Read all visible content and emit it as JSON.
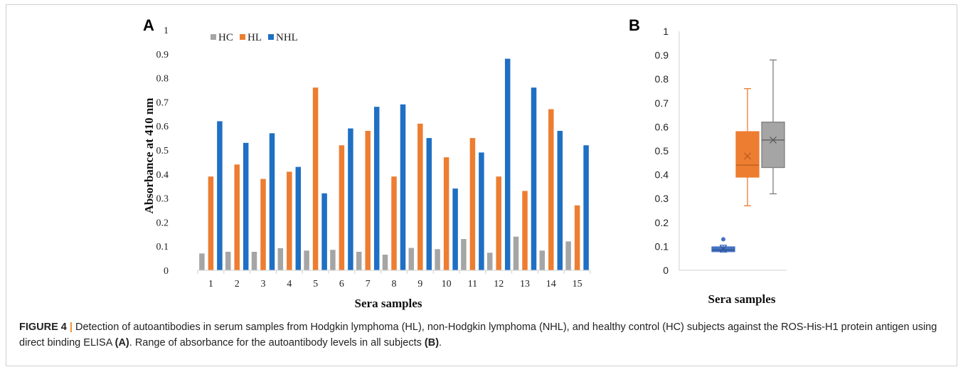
{
  "figure": {
    "caption": {
      "label": "FIGURE 4",
      "separator": "|",
      "text_1": " Detection of autoantibodies in serum samples from Hodgkin lymphoma (HL), non-Hodgkin lymphoma (NHL), and healthy control (HC) subjects against the ROS-His-H1 protein antigen using direct binding ELISA ",
      "ref_a": "(A)",
      "text_2": ". Range of absorbance for the autoantibody levels in all subjects ",
      "ref_b": "(B)",
      "text_3": "."
    }
  },
  "chart_data": [
    {
      "panel": "A",
      "type": "bar",
      "title": "",
      "xlabel": "Sera samples",
      "ylabel": "Absorbance at 410 nm",
      "ylim": [
        0,
        1
      ],
      "yticks": [
        "0",
        "0.1",
        "0.2",
        "0.3",
        "0.4",
        "0.5",
        "0.6",
        "0.7",
        "0.8",
        "0.9",
        "1"
      ],
      "grid": false,
      "legend": "top-left",
      "categories": [
        "1",
        "2",
        "3",
        "4",
        "5",
        "6",
        "7",
        "8",
        "9",
        "10",
        "11",
        "12",
        "13",
        "14",
        "15"
      ],
      "series": [
        {
          "name": "HC",
          "color": "#a5a5a5",
          "values": [
            0.07,
            0.077,
            0.077,
            0.092,
            0.082,
            0.085,
            0.077,
            0.065,
            0.093,
            0.088,
            0.13,
            0.073,
            0.14,
            0.082,
            0.12
          ]
        },
        {
          "name": "HL",
          "color": "#ed7d31",
          "values": [
            0.39,
            0.44,
            0.38,
            0.41,
            0.76,
            0.52,
            0.58,
            0.39,
            0.61,
            0.47,
            0.55,
            0.39,
            0.33,
            0.67,
            0.27
          ]
        },
        {
          "name": "NHL",
          "color": "#1f6fc4",
          "values": [
            0.62,
            0.53,
            0.57,
            0.43,
            0.32,
            0.59,
            0.68,
            0.69,
            0.55,
            0.34,
            0.49,
            0.88,
            0.76,
            0.58,
            0.52
          ]
        }
      ]
    },
    {
      "panel": "B",
      "type": "box",
      "title": "",
      "xlabel": "Sera samples",
      "ylabel": "",
      "ylim": [
        0,
        1
      ],
      "yticks": [
        "0",
        "0.1",
        "0.2",
        "0.3",
        "0.4",
        "0.5",
        "0.6",
        "0.7",
        "0.8",
        "0.9",
        "1"
      ],
      "grid": false,
      "boxes": [
        {
          "color": "#4472c4",
          "fill": "#4472c4",
          "min": 0.076,
          "q1": 0.078,
          "median": 0.085,
          "q3": 0.098,
          "max": 0.105,
          "mean": 0.09,
          "outliers": [
            0.13
          ]
        },
        {
          "color": "#ed7d31",
          "fill": "#ed7d31",
          "min": 0.27,
          "q1": 0.39,
          "median": 0.44,
          "q3": 0.58,
          "max": 0.76,
          "mean": 0.478,
          "outliers": []
        },
        {
          "color": "#7f7f7f",
          "fill": "#a5a5a5",
          "min": 0.32,
          "q1": 0.43,
          "median": 0.545,
          "q3": 0.62,
          "max": 0.88,
          "mean": 0.545,
          "outliers": []
        }
      ]
    }
  ]
}
